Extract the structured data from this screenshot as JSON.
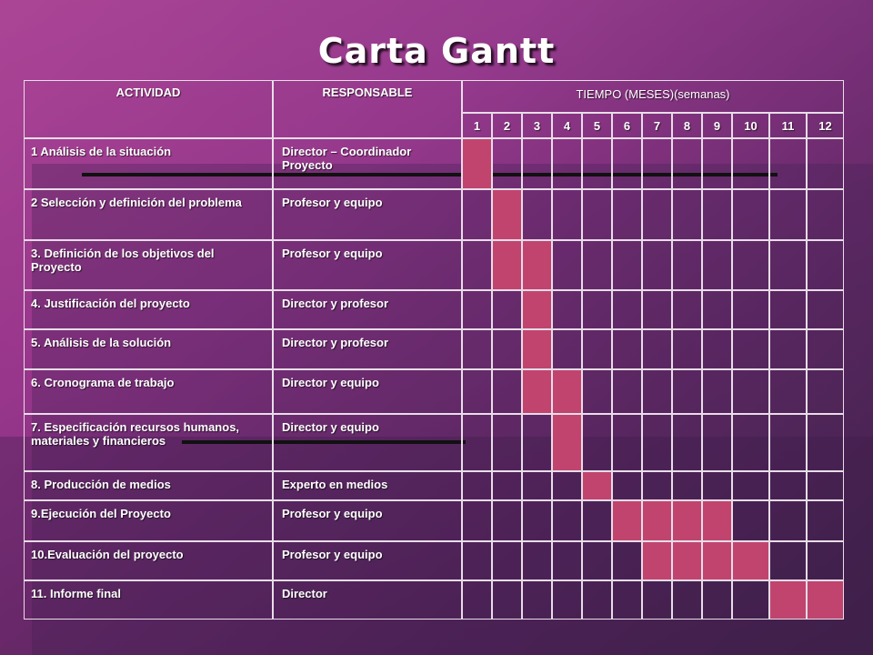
{
  "title": "Carta Gantt",
  "colors": {
    "bar": "#c0446e",
    "border": "#e8dde8"
  },
  "chart_data": {
    "type": "table",
    "headers": {
      "activity": "ACTIVIDAD",
      "responsible": "RESPONSABLE",
      "time": "TIEMPO (MESES)(semanas)"
    },
    "periods": [
      "1",
      "2",
      "3",
      "4",
      "5",
      "6",
      "7",
      "8",
      "9",
      "10",
      "11",
      "12"
    ],
    "tasks": [
      {
        "activity": "1 Análisis de la situación",
        "responsible": "Director – Coordinador Proyecto",
        "periods": [
          1
        ]
      },
      {
        "activity": "2 Selección y definición del problema",
        "responsible": "Profesor y equipo",
        "periods": [
          2
        ]
      },
      {
        "activity": "3. Definición de los objetivos del Proyecto",
        "responsible": "Profesor y equipo",
        "periods": [
          2,
          3
        ]
      },
      {
        "activity": "4. Justificación del proyecto",
        "responsible": "Director y profesor",
        "periods": [
          3
        ]
      },
      {
        "activity": "5. Análisis de la solución",
        "responsible": "Director y profesor",
        "periods": [
          3
        ]
      },
      {
        "activity": "6. Cronograma de trabajo",
        "responsible": "Director y equipo",
        "periods": [
          3,
          4
        ]
      },
      {
        "activity": "7. Especificación recursos humanos, materiales y financieros",
        "responsible": "Director y equipo",
        "periods": [
          4
        ]
      },
      {
        "activity": "8. Producción de medios",
        "responsible": "Experto en medios",
        "periods": [
          5
        ]
      },
      {
        "activity": "9.Ejecución del Proyecto",
        "responsible": "Profesor y equipo",
        "periods": [
          6,
          7,
          8,
          9
        ]
      },
      {
        "activity": "10.Evaluación del proyecto",
        "responsible": "Profesor y equipo",
        "periods": [
          7,
          8,
          9,
          10
        ]
      },
      {
        "activity": "11. Informe final",
        "responsible": "Director",
        "periods": [
          11,
          12
        ]
      }
    ]
  }
}
